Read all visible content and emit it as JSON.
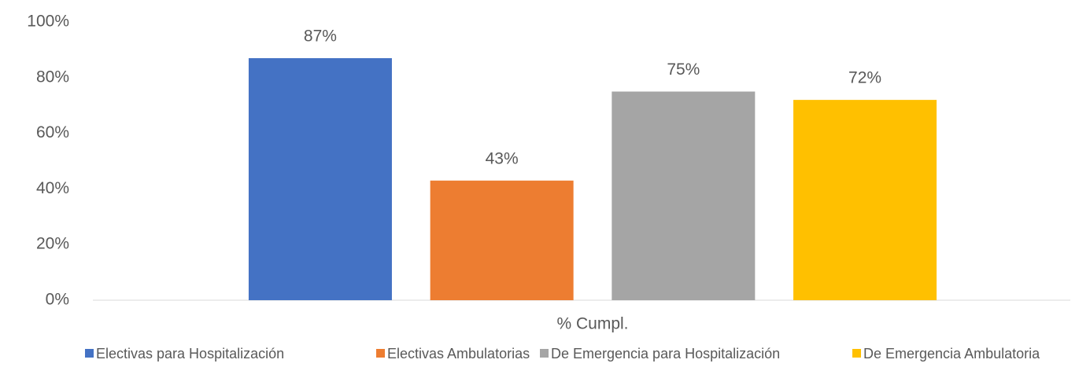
{
  "chart_data": {
    "type": "bar",
    "categories": [
      "% Cumpl."
    ],
    "series": [
      {
        "name": "Electivas para Hospitalización",
        "color": "#4472c4",
        "values": [
          87
        ],
        "value_labels": [
          "87%"
        ]
      },
      {
        "name": "Electivas Ambulatorias",
        "color": "#ed7d31",
        "values": [
          43
        ],
        "value_labels": [
          "43%"
        ]
      },
      {
        "name": "De Emergencia para Hospitalización",
        "color": "#a5a5a5",
        "values": [
          75
        ],
        "value_labels": [
          "75%"
        ]
      },
      {
        "name": "De Emergencia Ambulatoria",
        "color": "#ffc000",
        "values": [
          72
        ],
        "value_labels": [
          "72%"
        ]
      }
    ],
    "ylim": [
      0,
      100
    ],
    "yticks": [
      {
        "value": 0,
        "label": "0%"
      },
      {
        "value": 20,
        "label": "20%"
      },
      {
        "value": 40,
        "label": "40%"
      },
      {
        "value": 60,
        "label": "60%"
      },
      {
        "value": 80,
        "label": "80%"
      },
      {
        "value": 100,
        "label": "100%"
      }
    ],
    "grid": false,
    "legend": "bottom"
  }
}
